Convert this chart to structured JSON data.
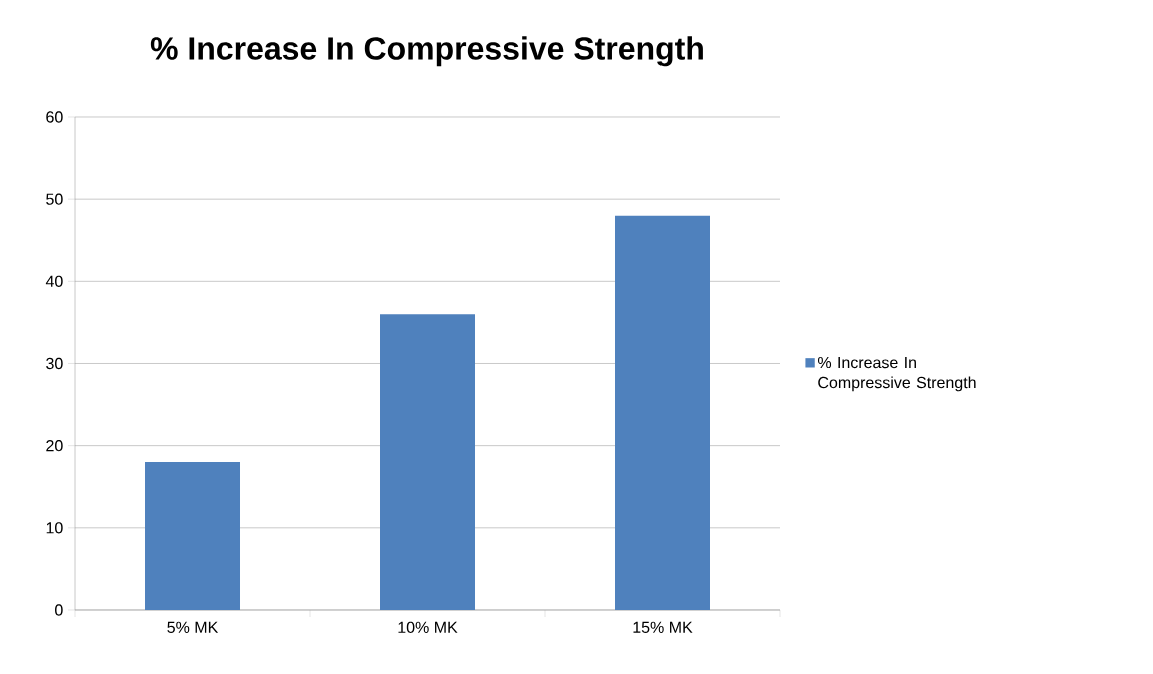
{
  "chart_data": {
    "type": "bar",
    "title": "% Increase In Compressive Strength",
    "categories": [
      "5% MK",
      "10% MK",
      "15% MK"
    ],
    "series": [
      {
        "name": "% Increase In Compressive Strength",
        "color": "#4f81bd",
        "values": [
          18,
          36,
          48
        ]
      }
    ],
    "ylim": [
      0,
      60
    ],
    "yticks": [
      0,
      10,
      20,
      30,
      40,
      50,
      60
    ],
    "grid": "y",
    "legend": "right"
  }
}
